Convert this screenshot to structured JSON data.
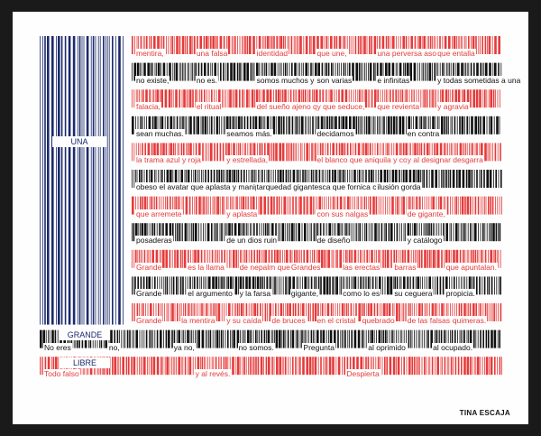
{
  "colors": {
    "blue": "#1b2a6b",
    "red": "#e63a3a",
    "dark": "#111111",
    "background": "#fefefe",
    "frame": "#1a1a1a"
  },
  "canton": {
    "top_label": "UNA",
    "middle_label": "GRANDE",
    "bottom_label": "LIBRE"
  },
  "stripes": [
    {
      "color": "red",
      "words": [
        "mentira,",
        "una falsa",
        "identidad",
        "que une,",
        "una perversa asociación",
        "que entalla"
      ]
    },
    {
      "color": "dark",
      "words": [
        "no existe,",
        "no es.",
        "somos muchos y dispersos",
        "son varias",
        "e infinitas",
        "y todas sometidas a una"
      ]
    },
    {
      "color": "red",
      "words": [
        "falacia,",
        "el ritual",
        "del sueño ajeno que impone",
        "y que seduce,",
        "que revienta",
        "y agravia"
      ]
    },
    {
      "color": "dark",
      "words": [
        "sean muchas.",
        "seamos más.",
        "decidamos",
        "en contra"
      ]
    },
    {
      "color": "red",
      "words": [
        "la trama azul y roja",
        "y estrellada,",
        "el blanco que aniquila y considera luego,",
        "y al designar desgarra"
      ]
    },
    {
      "color": "dark",
      "words": [
        "obeso el avatar que aplasta y manipula,",
        "tarquedad gigantesca que fornica con su propia",
        "ilusión gorda"
      ]
    },
    {
      "color": "red",
      "words": [
        "que arremete",
        "y aplasta",
        "con sus nalgas",
        "de gigante,"
      ]
    },
    {
      "color": "dark",
      "words": [
        "posaderas",
        "de un dios ruin",
        "de diseño",
        "y catálogo"
      ]
    },
    {
      "color": "red",
      "words": [
        "Grande",
        "es la llama",
        "de nepalm que quema.",
        "Grandes",
        "las erectas",
        "barras",
        "que apuntalan."
      ]
    },
    {
      "color": "dark",
      "words": [
        "Grande",
        "el argumento",
        "y la farsa",
        "gigante,",
        "como lo es",
        "su ceguera",
        "propicia."
      ]
    },
    {
      "color": "red",
      "words": [
        "Grande",
        "la mentira",
        "y su caída",
        "de bruces",
        "en el cristal",
        "quebrado",
        "de las falsas",
        "quimeras."
      ]
    },
    {
      "color": "dark",
      "words": [
        "No eres",
        "no,",
        "ya no,",
        "no somos.",
        "Pregunta",
        "al oprimido",
        "al ocupado."
      ]
    },
    {
      "color": "red",
      "words": [
        "Todo falso",
        "y al revés.",
        "Despierta"
      ]
    }
  ],
  "author": "TINA ESCAJA"
}
